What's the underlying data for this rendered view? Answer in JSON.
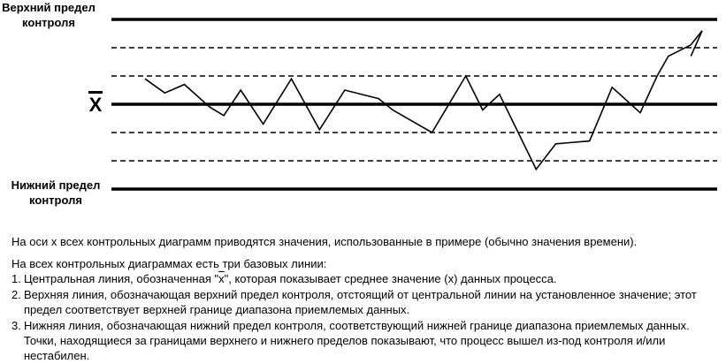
{
  "labels": {
    "upper_limit": "Верхний предел контроля",
    "lower_limit": "Нижний предел контроля",
    "center_symbol": "X"
  },
  "chart_data": {
    "type": "line",
    "y_scale_note": "relative units; 0 = center line, ±3 = control limits",
    "reference_lines": [
      {
        "name": "upper_control_limit",
        "y": 3,
        "style": "solid-thick"
      },
      {
        "name": "upper_dashed_2",
        "y": 2,
        "style": "dashed"
      },
      {
        "name": "upper_dashed_1",
        "y": 1,
        "style": "dashed"
      },
      {
        "name": "center",
        "y": 0,
        "style": "solid-thick"
      },
      {
        "name": "lower_dashed_1",
        "y": -1,
        "style": "dashed"
      },
      {
        "name": "lower_dashed_2",
        "y": -2,
        "style": "dashed"
      },
      {
        "name": "lower_control_limit",
        "y": -3,
        "style": "solid-thick"
      }
    ],
    "series": [
      {
        "x": [
          1,
          2,
          3,
          4,
          5,
          6,
          7,
          8,
          9,
          10,
          11,
          12,
          13,
          14,
          15,
          16,
          17,
          18,
          19,
          20,
          21,
          22,
          23,
          24,
          25,
          26
        ],
        "values": [
          0.9,
          0.4,
          0.7,
          -0.1,
          -0.4,
          0.5,
          -0.7,
          0.9,
          -0.9,
          0.5,
          0.2,
          -0.2,
          -1.0,
          1.0,
          -0.2,
          0.35,
          -2.3,
          -1.4,
          -1.3,
          0.6,
          -0.3,
          1.0,
          1.7,
          2.1,
          2.6,
          1.7
        ]
      }
    ],
    "x_positions": [
      1,
      4.5,
      8,
      12.5,
      15,
      18,
      22,
      27,
      32,
      36.5,
      42.5,
      45,
      52,
      58,
      61,
      64,
      70.5,
      74,
      80,
      84,
      89,
      92,
      94,
      98,
      100,
      98
    ],
    "ylim": [
      -3,
      3
    ]
  },
  "text": {
    "xaxis_note": "На оси x всех контрольных диаграмм приводятся значения, использованные в примере (обычно значения времени).",
    "intro": "На всех контрольных диаграммах есть три базовых линии:",
    "items": [
      {
        "num": "1.",
        "before": "Центральная линия, обозначенная \"",
        "mark": "x",
        "after": "\", которая показывает среднее значение (x) данных процесса."
      },
      {
        "num": "2.",
        "text": "Верхняя линия, обозначающая верхний предел контроля, отстоящий от центральной линии на установленное значение; этот предел соответствует верхней границе диапазона приемлемых данных."
      },
      {
        "num": "3.",
        "text": "Нижняя линия, обозначающая нижний предел контроля, соответствующий нижней границе диапазона приемлемых данных. Точки, находящиеся за границами верхнего и нижнего пределов показывают, что процесс вышел из-под контроля и/или нестабилен."
      }
    ]
  }
}
